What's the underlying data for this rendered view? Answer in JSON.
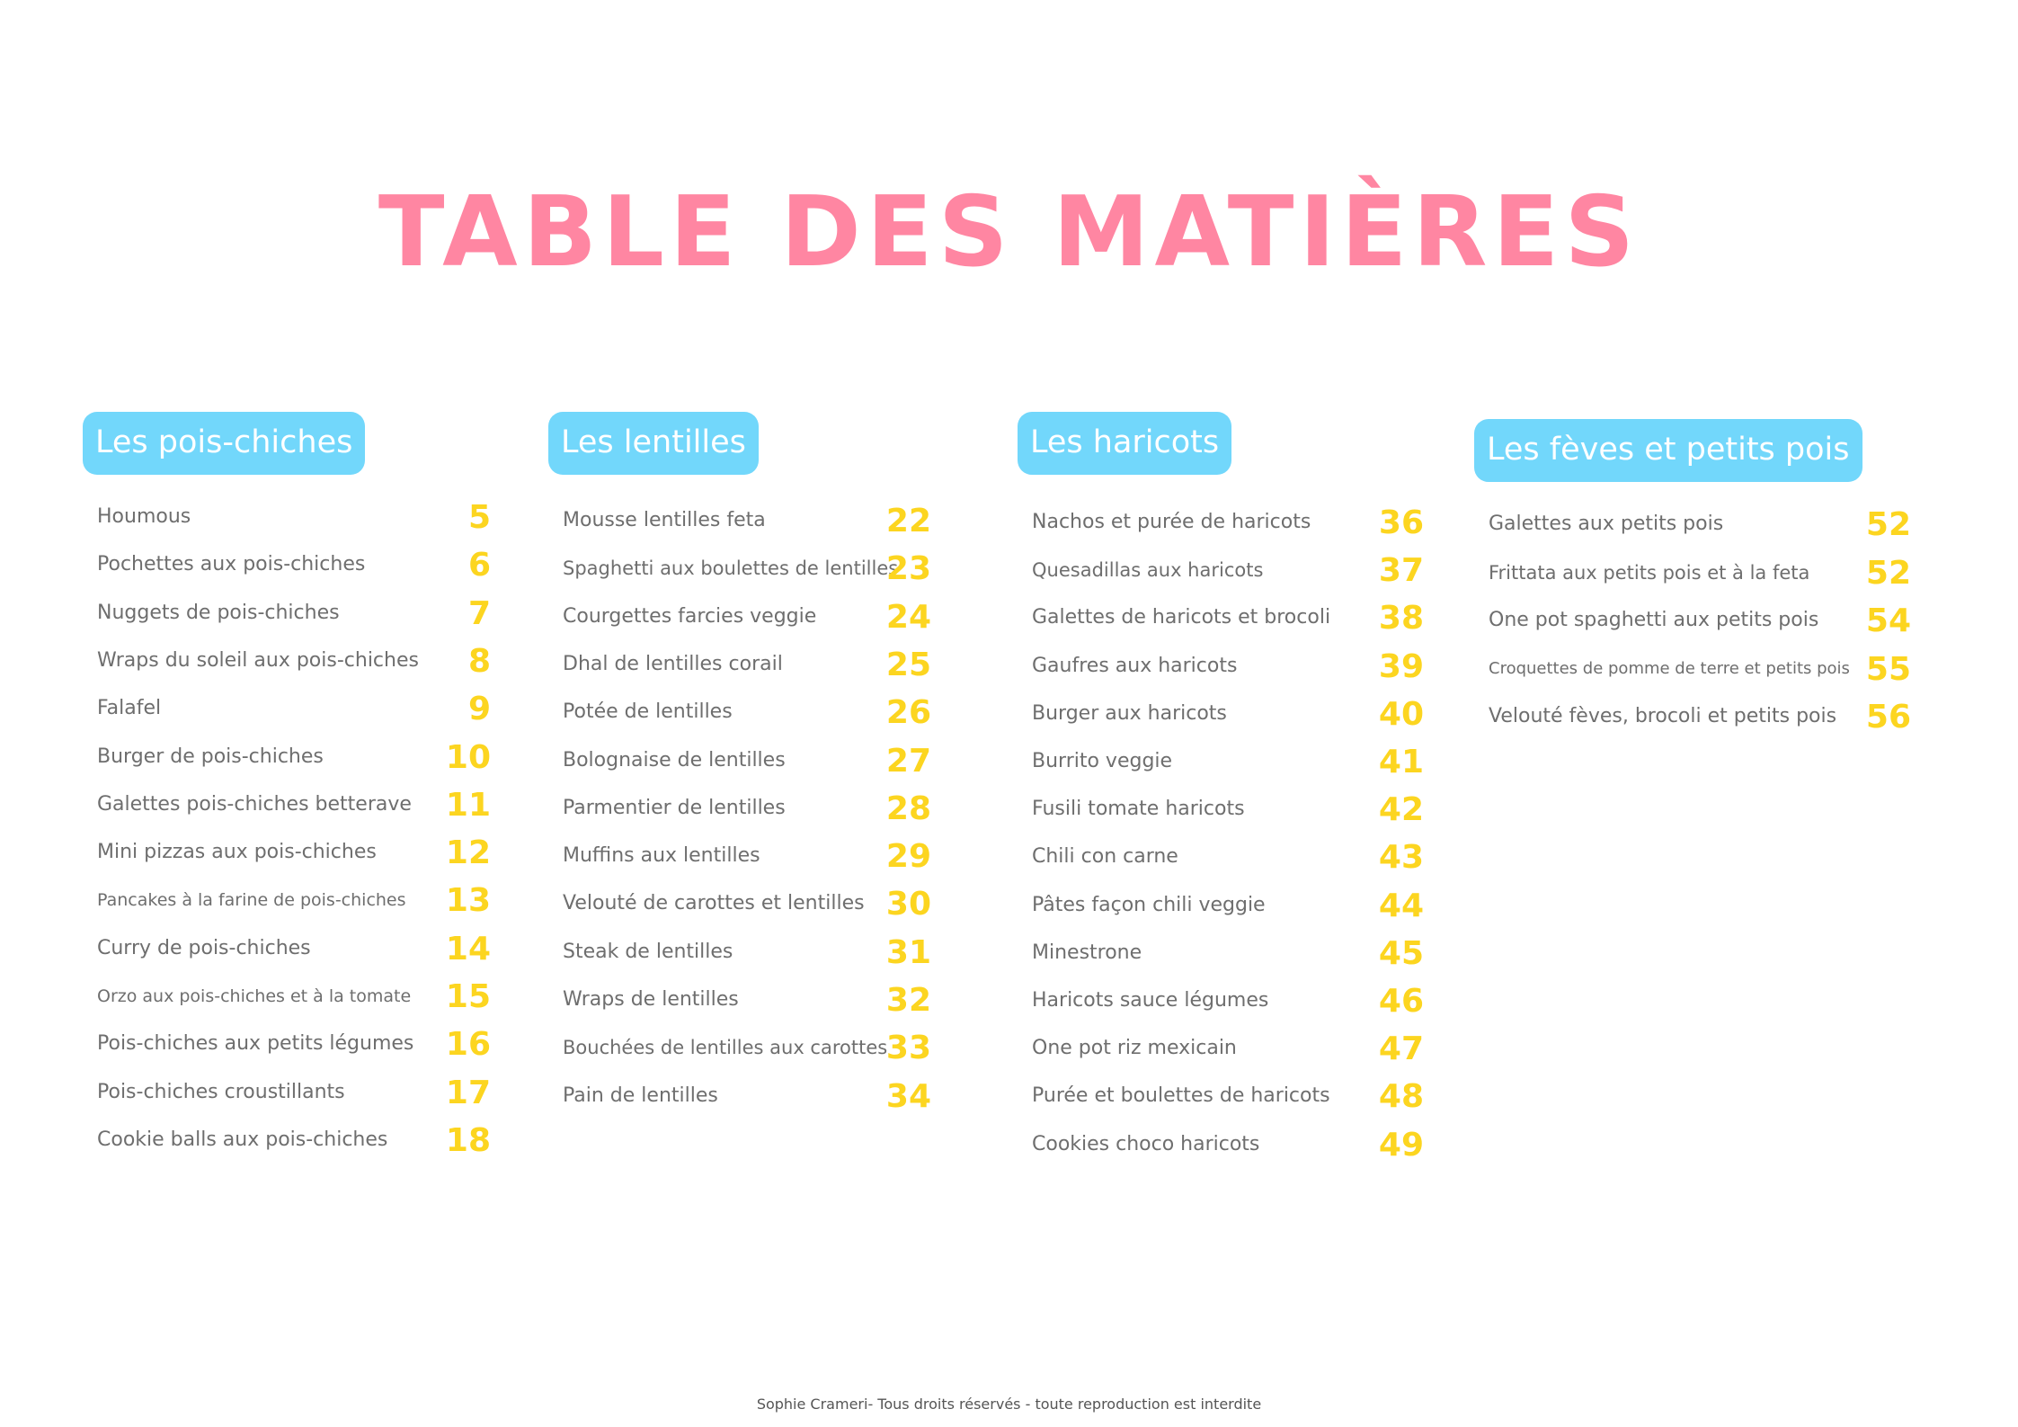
{
  "page": {
    "title": "TABLE DES MATIÈRES",
    "footer": "Sophie Crameri- Tous droits réservés - toute reproduction est interdite",
    "colors": {
      "title": "#ff86a2",
      "pill": "#72d7fb",
      "page_number": "#fcd520",
      "entry_text": "#6e6e6e"
    }
  },
  "sections": [
    {
      "heading": "Les pois-chiches",
      "entries": [
        {
          "title": "Houmous",
          "page": "5"
        },
        {
          "title": "Pochettes aux pois-chiches",
          "page": "6"
        },
        {
          "title": "Nuggets de pois-chiches",
          "page": "7"
        },
        {
          "title": "Wraps du soleil aux pois-chiches",
          "page": "8"
        },
        {
          "title": "Falafel",
          "page": "9"
        },
        {
          "title": "Burger de pois-chiches",
          "page": "10"
        },
        {
          "title": "Galettes pois-chiches betterave",
          "page": "11"
        },
        {
          "title": "Mini pizzas aux pois-chiches",
          "page": "12"
        },
        {
          "title": "Pancakes à la farine de pois-chiches",
          "page": "13"
        },
        {
          "title": "Curry de pois-chiches",
          "page": "14"
        },
        {
          "title": "Orzo aux pois-chiches et à la tomate",
          "page": "15"
        },
        {
          "title": "Pois-chiches aux petits légumes",
          "page": "16"
        },
        {
          "title": "Pois-chiches croustillants",
          "page": "17"
        },
        {
          "title": "Cookie balls aux pois-chiches",
          "page": "18"
        }
      ]
    },
    {
      "heading": "Les lentilles",
      "entries": [
        {
          "title": "Mousse lentilles feta",
          "page": "22"
        },
        {
          "title": "Spaghetti aux boulettes de lentilles",
          "page": "23"
        },
        {
          "title": "Courgettes farcies veggie",
          "page": "24"
        },
        {
          "title": "Dhal de lentilles corail",
          "page": "25"
        },
        {
          "title": "Potée de lentilles",
          "page": "26"
        },
        {
          "title": "Bolognaise de lentilles",
          "page": "27"
        },
        {
          "title": "Parmentier de lentilles",
          "page": "28"
        },
        {
          "title": "Muffins aux lentilles",
          "page": "29"
        },
        {
          "title": "Velouté de carottes et lentilles",
          "page": "30"
        },
        {
          "title": "Steak de lentilles",
          "page": "31"
        },
        {
          "title": "Wraps de lentilles",
          "page": "32"
        },
        {
          "title": "Bouchées de lentilles aux carottes",
          "page": "33"
        },
        {
          "title": "Pain de lentilles",
          "page": "34"
        }
      ]
    },
    {
      "heading": "Les haricots",
      "entries": [
        {
          "title": "Nachos et purée de haricots",
          "page": "36"
        },
        {
          "title": "Quesadillas aux haricots",
          "page": "37"
        },
        {
          "title": "Galettes de haricots et brocoli",
          "page": "38"
        },
        {
          "title": "Gaufres aux haricots",
          "page": "39"
        },
        {
          "title": "Burger aux haricots",
          "page": "40"
        },
        {
          "title": "Burrito veggie",
          "page": "41"
        },
        {
          "title": "Fusili tomate haricots",
          "page": "42"
        },
        {
          "title": "Chili con carne",
          "page": "43"
        },
        {
          "title": "Pâtes façon chili veggie",
          "page": "44"
        },
        {
          "title": "Minestrone",
          "page": "45"
        },
        {
          "title": "Haricots sauce légumes",
          "page": "46"
        },
        {
          "title": "One pot riz mexicain",
          "page": "47"
        },
        {
          "title": "Purée et boulettes de haricots",
          "page": "48"
        },
        {
          "title": "Cookies choco haricots",
          "page": "49"
        }
      ]
    },
    {
      "heading": "Les fèves et petits pois",
      "entries": [
        {
          "title": "Galettes aux petits pois",
          "page": "52"
        },
        {
          "title": "Frittata aux petits pois et à la feta",
          "page": "52"
        },
        {
          "title": "One pot spaghetti aux petits pois",
          "page": "54"
        },
        {
          "title": "Croquettes de pomme de terre et petits pois",
          "page": "55"
        },
        {
          "title": "Velouté fèves, brocoli et petits pois",
          "page": "56"
        }
      ]
    }
  ]
}
